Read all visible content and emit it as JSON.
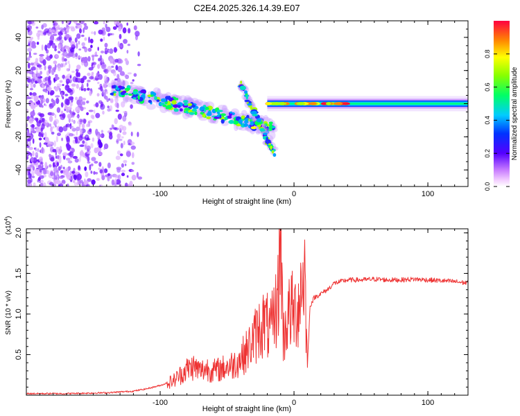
{
  "title": "C2E4.2025.326.14.39.E07",
  "chart_data": [
    {
      "type": "heatmap",
      "xlabel": "Height of straight line (km)",
      "ylabel": "Frequency (Hz)",
      "xlim": [
        -200,
        130
      ],
      "ylim": [
        -50,
        50
      ],
      "x_ticks": [
        -100,
        0,
        100
      ],
      "y_ticks": [
        40,
        20,
        0,
        -20,
        -40
      ],
      "colorbar": {
        "label": "Normalized spectral amplitude",
        "range": [
          0,
          1
        ],
        "ticks": [
          0.0,
          0.2,
          0.4,
          0.6,
          0.8
        ],
        "tick_labels": [
          "0.0",
          "0.2",
          "0.4",
          "0.6",
          "0.8"
        ]
      },
      "features": [
        {
          "name": "noise region",
          "x_range": [
            -200,
            -115
          ],
          "y_range": [
            -50,
            50
          ]
        },
        {
          "name": "descending trace",
          "x_start": -135,
          "y_start": 9,
          "x_end": -15,
          "y_end": -15
        },
        {
          "name": "branch",
          "x_start": -40,
          "y_start": 12,
          "x_end": -15,
          "y_end": -30
        },
        {
          "name": "steady carrier",
          "x_start": -20,
          "x_end": 130,
          "y": 0
        }
      ]
    },
    {
      "type": "line",
      "xlabel": "Height of straight line (km)",
      "ylabel": "SNR (10 * v/v)",
      "y_scale_label": "(x10",
      "y_scale_exp": "4",
      "xlim": [
        -200,
        130
      ],
      "ylim": [
        0,
        2.05
      ],
      "x_ticks": [
        -100,
        0,
        100
      ],
      "y_ticks": [
        0.5,
        1.0,
        1.5,
        2.0
      ],
      "y_tick_labels": [
        "0.5",
        "1.0",
        "1.5",
        "2.0"
      ],
      "series": [
        {
          "name": "SNR",
          "color": "#ee3333",
          "x": [
            -200,
            -170,
            -140,
            -120,
            -110,
            -100,
            -90,
            -85,
            -80,
            -75,
            -70,
            -65,
            -60,
            -55,
            -50,
            -45,
            -40,
            -35,
            -30,
            -25,
            -22,
            -20,
            -18,
            -15,
            -12,
            -10,
            -8,
            -5,
            -2,
            0,
            3,
            5,
            8,
            10,
            12,
            15,
            20,
            25,
            30,
            40,
            50,
            60,
            70,
            80,
            90,
            100,
            110,
            120,
            130
          ],
          "values": [
            0.02,
            0.02,
            0.03,
            0.05,
            0.08,
            0.12,
            0.18,
            0.25,
            0.32,
            0.35,
            0.3,
            0.33,
            0.3,
            0.32,
            0.35,
            0.38,
            0.45,
            0.55,
            0.7,
            0.85,
            0.9,
            0.85,
            0.75,
            0.95,
            1.2,
            2.02,
            0.7,
            0.95,
            1.05,
            1.0,
            1.1,
            1.3,
            1.55,
            0.35,
            1.1,
            1.2,
            1.25,
            1.3,
            1.38,
            1.42,
            1.42,
            1.43,
            1.42,
            1.42,
            1.43,
            1.42,
            1.41,
            1.4,
            1.38
          ]
        }
      ]
    }
  ]
}
